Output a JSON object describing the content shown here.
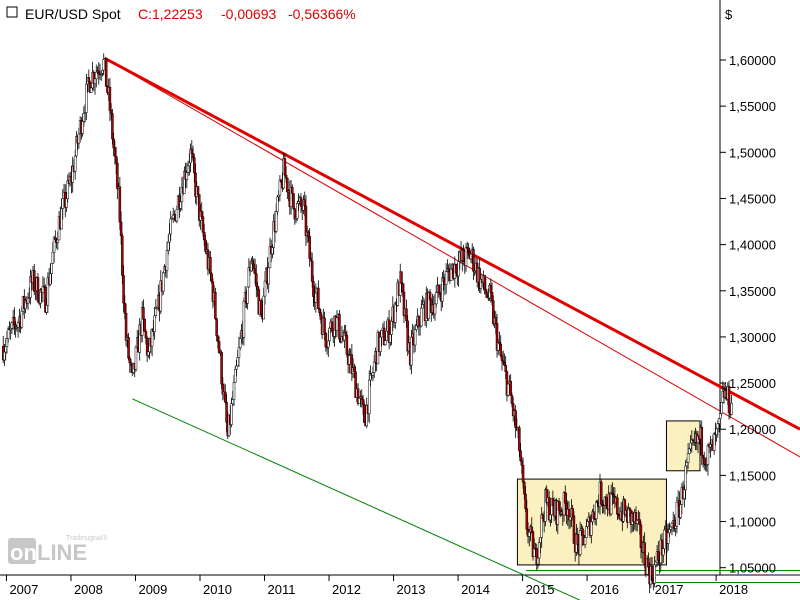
{
  "header": {
    "symbol": "EUR/USD Spot",
    "close_label": "C:1,22253",
    "change_abs": "-0,00693",
    "change_pct": "-0,56366%"
  },
  "currency_symbol": "$",
  "watermark": {
    "brand": "online",
    "sub": "Tradesignal®"
  },
  "colors": {
    "trend_thick": "#e00000",
    "trend_thin": "#e00000",
    "support": "#008000",
    "box_fill": "#fbf0c0",
    "box_stroke": "#000000",
    "candle_up": "#000000",
    "candle_down": "#b00000",
    "header_red": "#e00000"
  },
  "chart_data": {
    "type": "candlestick",
    "ylim": [
      1.015,
      1.665
    ],
    "xlim": [
      2006.9,
      2019.3
    ],
    "y_ticks": [
      {
        "v": 1.6,
        "label": "1,60000"
      },
      {
        "v": 1.55,
        "label": "1,55000"
      },
      {
        "v": 1.5,
        "label": "1,50000"
      },
      {
        "v": 1.45,
        "label": "1,45000"
      },
      {
        "v": 1.4,
        "label": "1,40000"
      },
      {
        "v": 1.35,
        "label": "1,35000"
      },
      {
        "v": 1.3,
        "label": "1,30000"
      },
      {
        "v": 1.25,
        "label": "1,25000"
      },
      {
        "v": 1.2,
        "label": "1,20000"
      },
      {
        "v": 1.15,
        "label": "1,15000"
      },
      {
        "v": 1.1,
        "label": "1,10000"
      },
      {
        "v": 1.05,
        "label": "1,05000"
      }
    ],
    "x_ticks": [
      {
        "v": 2007.0,
        "label": "2007"
      },
      {
        "v": 2008.0,
        "label": "2008"
      },
      {
        "v": 2009.0,
        "label": "2009"
      },
      {
        "v": 2010.0,
        "label": "2010"
      },
      {
        "v": 2011.0,
        "label": "2011"
      },
      {
        "v": 2012.0,
        "label": "2012"
      },
      {
        "v": 2013.0,
        "label": "2013"
      },
      {
        "v": 2014.0,
        "label": "2014"
      },
      {
        "v": 2015.0,
        "label": "2015"
      },
      {
        "v": 2016.0,
        "label": "2016"
      },
      {
        "v": 2017.0,
        "label": "2017"
      },
      {
        "v": 2018.0,
        "label": "2018"
      }
    ],
    "price_path": [
      [
        2006.95,
        1.29
      ],
      [
        2007.2,
        1.32
      ],
      [
        2007.4,
        1.36
      ],
      [
        2007.6,
        1.34
      ],
      [
        2007.8,
        1.42
      ],
      [
        2008.0,
        1.47
      ],
      [
        2008.2,
        1.55
      ],
      [
        2008.3,
        1.58
      ],
      [
        2008.5,
        1.6
      ],
      [
        2008.6,
        1.55
      ],
      [
        2008.75,
        1.44
      ],
      [
        2008.85,
        1.3
      ],
      [
        2008.95,
        1.25
      ],
      [
        2009.1,
        1.32
      ],
      [
        2009.2,
        1.28
      ],
      [
        2009.35,
        1.33
      ],
      [
        2009.5,
        1.4
      ],
      [
        2009.7,
        1.46
      ],
      [
        2009.85,
        1.5
      ],
      [
        2010.0,
        1.43
      ],
      [
        2010.2,
        1.35
      ],
      [
        2010.35,
        1.25
      ],
      [
        2010.43,
        1.19
      ],
      [
        2010.6,
        1.28
      ],
      [
        2010.8,
        1.39
      ],
      [
        2010.95,
        1.32
      ],
      [
        2011.1,
        1.4
      ],
      [
        2011.3,
        1.48
      ],
      [
        2011.45,
        1.44
      ],
      [
        2011.6,
        1.44
      ],
      [
        2011.75,
        1.36
      ],
      [
        2011.95,
        1.3
      ],
      [
        2012.1,
        1.32
      ],
      [
        2012.3,
        1.28
      ],
      [
        2012.55,
        1.21
      ],
      [
        2012.75,
        1.29
      ],
      [
        2012.95,
        1.31
      ],
      [
        2013.1,
        1.36
      ],
      [
        2013.25,
        1.28
      ],
      [
        2013.45,
        1.33
      ],
      [
        2013.65,
        1.34
      ],
      [
        2013.85,
        1.37
      ],
      [
        2014.0,
        1.38
      ],
      [
        2014.2,
        1.39
      ],
      [
        2014.35,
        1.36
      ],
      [
        2014.5,
        1.34
      ],
      [
        2014.65,
        1.28
      ],
      [
        2014.8,
        1.24
      ],
      [
        2014.95,
        1.18
      ],
      [
        2015.05,
        1.1
      ],
      [
        2015.2,
        1.06
      ],
      [
        2015.35,
        1.12
      ],
      [
        2015.5,
        1.11
      ],
      [
        2015.7,
        1.12
      ],
      [
        2015.85,
        1.07
      ],
      [
        2016.0,
        1.09
      ],
      [
        2016.2,
        1.13
      ],
      [
        2016.35,
        1.12
      ],
      [
        2016.55,
        1.11
      ],
      [
        2016.75,
        1.1
      ],
      [
        2016.9,
        1.06
      ],
      [
        2017.0,
        1.04
      ],
      [
        2017.15,
        1.07
      ],
      [
        2017.3,
        1.09
      ],
      [
        2017.45,
        1.12
      ],
      [
        2017.55,
        1.16
      ],
      [
        2017.65,
        1.18
      ],
      [
        2017.75,
        1.19
      ],
      [
        2017.85,
        1.17
      ],
      [
        2017.95,
        1.18
      ],
      [
        2018.05,
        1.2
      ],
      [
        2018.12,
        1.24
      ],
      [
        2018.2,
        1.23
      ],
      [
        2018.25,
        1.223
      ]
    ],
    "lines": [
      {
        "name": "trend-thick",
        "x1": 2008.52,
        "y1": 1.602,
        "x2": 2019.3,
        "y2": 1.2
      },
      {
        "name": "trend-thin",
        "x1": 2008.52,
        "y1": 1.602,
        "x2": 2019.3,
        "y2": 1.17
      },
      {
        "name": "support",
        "x1": 2008.95,
        "y1": 1.233,
        "x2": 2016.2,
        "y2": 1.005
      },
      {
        "name": "level-1",
        "x1": 2015.05,
        "y1": 1.047,
        "x2": 2019.3,
        "y2": 1.047
      },
      {
        "name": "level-2",
        "x1": 2016.95,
        "y1": 1.034,
        "x2": 2019.3,
        "y2": 1.034
      }
    ],
    "boxes": [
      {
        "name": "range-box",
        "x1": 2014.92,
        "y1": 1.146,
        "x2": 2017.23,
        "y2": 1.053
      },
      {
        "name": "flag-box",
        "x1": 2017.23,
        "y1": 1.209,
        "x2": 2017.75,
        "y2": 1.155
      }
    ]
  }
}
